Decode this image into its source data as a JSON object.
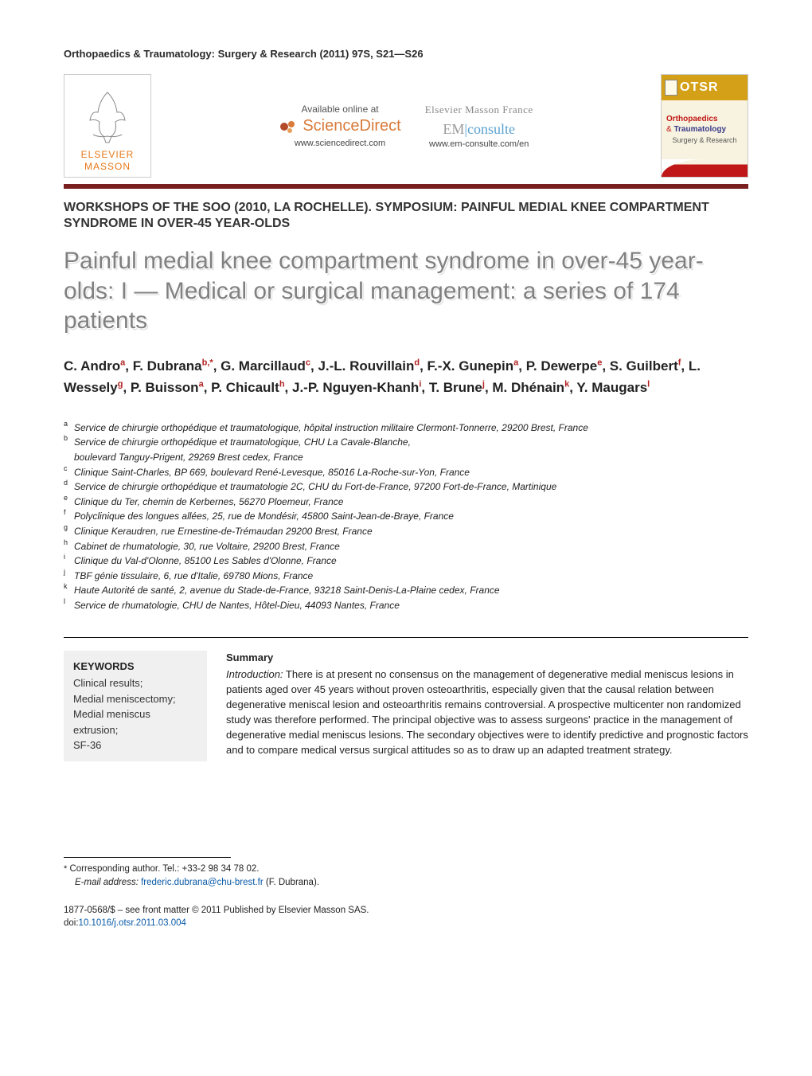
{
  "journal_ref": "Orthopaedics & Traumatology: Surgery & Research (2011) 97S, S21—S26",
  "header": {
    "elsevier_logo": {
      "line1": "ELSEVIER",
      "line2": "MASSON"
    },
    "sciencedirect": {
      "available": "Available online at",
      "brand": "ScienceDirect",
      "url": "www.sciencedirect.com"
    },
    "emconsulte": {
      "publisher": "Elsevier Masson France",
      "brand_em": "EM",
      "brand_consulte": "consulte",
      "url": "www.em-consulte.com/en"
    },
    "right_logo": {
      "otsr": "OTSR",
      "ortho": "Orthopaedics",
      "amp": "&",
      "trauma": "Traumatology",
      "sub": "Surgery & Research"
    },
    "bar_color": "#7a1f1f"
  },
  "workshop": "WORKSHOPS OF THE SOO (2010, LA ROCHELLE). SYMPOSIUM: PAINFUL MEDIAL KNEE COMPARTMENT SYNDROME IN OVER-45 YEAR-OLDS",
  "title": "Painful medial knee compartment syndrome in over-45 year-olds: I — Medical or surgical management: a series of 174 patients",
  "authors_html": "C. Andro<sup>a</sup>, F. Dubrana<sup>b,*</sup>, G. Marcillaud<sup>c</sup>, J.-L. Rouvillain<sup>d</sup>, F.-X. Gunepin<sup>a</sup>, P. Dewerpe<sup>e</sup>, S. Guilbert<sup>f</sup>, L. Wessely<sup>g</sup>, P. Buisson<sup>a</sup>, P. Chicault<sup>h</sup>, J.-P. Nguyen-Khanh<sup>i</sup>, T. Brune<sup>j</sup>, M. Dhénain<sup>k</sup>, Y. Maugars<sup>l</sup>",
  "affiliations": [
    {
      "label": "a",
      "text": "Service de chirurgie orthopédique et traumatologique, hôpital instruction militaire Clermont-Tonnerre, 29200 Brest, France"
    },
    {
      "label": "b",
      "text": "Service de chirurgie orthopédique et traumatologique, CHU La Cavale-Blanche,"
    },
    {
      "label": "",
      "text": "boulevard Tanguy-Prigent, 29269 Brest cedex, France"
    },
    {
      "label": "c",
      "text": "Clinique Saint-Charles, BP 669, boulevard René-Levesque, 85016 La-Roche-sur-Yon, France"
    },
    {
      "label": "d",
      "text": "Service de chirurgie orthopédique et traumatologie 2C, CHU du Fort-de-France, 97200 Fort-de-France, Martinique"
    },
    {
      "label": "e",
      "text": "Clinique du Ter, chemin de Kerbernes, 56270 Ploemeur, France"
    },
    {
      "label": "f",
      "text": "Polyclinique des longues allées, 25, rue de Mondésir, 45800 Saint-Jean-de-Braye, France"
    },
    {
      "label": "g",
      "text": "Clinique Keraudren, rue Ernestine-de-Trémaudan 29200 Brest, France"
    },
    {
      "label": "h",
      "text": "Cabinet de rhumatologie, 30, rue Voltaire, 29200 Brest, France"
    },
    {
      "label": "i",
      "text": "Clinique du Val-d'Olonne, 85100 Les Sables d'Olonne, France"
    },
    {
      "label": "j",
      "text": "TBF génie tissulaire, 6, rue d'Italie, 69780 Mions, France"
    },
    {
      "label": "k",
      "text": "Haute Autorité de santé, 2, avenue du Stade-de-France, 93218 Saint-Denis-La-Plaine cedex, France"
    },
    {
      "label": "l",
      "text": "Service de rhumatologie, CHU de Nantes, Hôtel-Dieu, 44093 Nantes, France"
    }
  ],
  "keywords": {
    "heading": "KEYWORDS",
    "items": [
      "Clinical results;",
      "Medial meniscectomy;",
      "Medial meniscus extrusion;",
      "SF-36"
    ]
  },
  "summary": {
    "heading": "Summary",
    "intro_label": "Introduction:",
    "intro_text": " There is at present no consensus on the management of degenerative medial meniscus lesions in patients aged over 45 years without proven osteoarthritis, especially given that the causal relation between degenerative meniscal lesion and osteoarthritis remains controversial. A prospective multicenter non randomized study was therefore performed. The principal objective was to assess surgeons' practice in the management of degenerative medial meniscus lesions. The secondary objectives were to identify predictive and prognostic factors and to compare medical versus surgical attitudes so as to draw up an adapted treatment strategy."
  },
  "corresponding": {
    "line1": "Corresponding author. Tel.: +33-2 98 34 78 02.",
    "email_label": "E-mail address:",
    "email": "frederic.dubrana@chu-brest.fr",
    "email_author": "(F. Dubrana)."
  },
  "copyright": {
    "issn": "1877-0568/$ – see front matter © 2011 Published by Elsevier Masson SAS.",
    "doi_label": "doi:",
    "doi": "10.1016/j.otsr.2011.03.004"
  },
  "colors": {
    "title_gray": "#808080",
    "sup_red": "#b22222",
    "link_blue": "#0a5aa6",
    "keywords_bg": "#f0f0f0",
    "banner_bar": "#7a1f1f",
    "elsevier_orange": "#e67817",
    "sd_orange": "#d97a3a",
    "em_blue": "#5aa0d0",
    "otsr_gold": "#d4a017",
    "otsr_red": "#c01818",
    "otsr_blue": "#3a3a8a"
  },
  "typography": {
    "journal_ref_pt": 13,
    "workshop_pt": 16,
    "title_pt": 30,
    "authors_pt": 17,
    "affil_pt": 12,
    "body_pt": 13,
    "footer_pt": 11.5
  }
}
